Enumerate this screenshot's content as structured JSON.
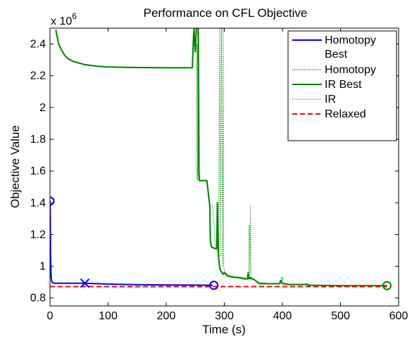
{
  "chart_data": {
    "type": "line",
    "title": "Performance on CFL Objective",
    "xlabel": "Time (s)",
    "ylabel": "Objective Value",
    "y_multiplier_label": "x 10",
    "y_multiplier_exponent": "6",
    "xlim": [
      0,
      600
    ],
    "ylim": [
      0.75,
      2.5
    ],
    "x_ticks": [
      0,
      100,
      200,
      300,
      400,
      500,
      600
    ],
    "y_ticks": [
      0.8,
      1,
      1.2,
      1.4,
      1.6,
      1.8,
      2,
      2.2,
      2.4
    ],
    "grid": false,
    "legend_position": "top-right",
    "colors": {
      "homotopy": "#0000ff",
      "ir": "#007f00",
      "relaxed": "#ff0000"
    },
    "series": [
      {
        "name": "Homotopy Best",
        "style": "solid",
        "color": "#0000ff",
        "x": [
          0,
          0.5,
          1,
          2,
          3,
          5,
          8,
          60,
          100,
          150,
          200,
          250,
          280
        ],
        "y": [
          1.41,
          1.3,
          1.05,
          0.93,
          0.905,
          0.895,
          0.893,
          0.893,
          0.888,
          0.884,
          0.882,
          0.881,
          0.88
        ]
      },
      {
        "name": "Homotopy",
        "style": "dotted",
        "color": "#0000ff",
        "x": [
          0,
          0.5,
          1,
          2,
          3,
          5,
          8,
          60,
          100,
          150,
          200,
          250,
          280
        ],
        "y": [
          1.41,
          1.3,
          1.05,
          0.93,
          0.905,
          0.895,
          0.893,
          0.893,
          0.888,
          0.884,
          0.882,
          0.881,
          0.88
        ]
      },
      {
        "name": "IR Best",
        "style": "solid",
        "color": "#007f00",
        "x": [
          10,
          15,
          20,
          25,
          30,
          40,
          60,
          80,
          100,
          150,
          200,
          245,
          246,
          247,
          248,
          249,
          250,
          252,
          255,
          256,
          257,
          258,
          270,
          275,
          276,
          278,
          285,
          287,
          288,
          290,
          292,
          294,
          296,
          298,
          300,
          305,
          310,
          315,
          320,
          330,
          335,
          340,
          341,
          342,
          343,
          345,
          347,
          350,
          360,
          380,
          395,
          397,
          400,
          402,
          410,
          440,
          442,
          444,
          450,
          500,
          550,
          580
        ],
        "y": [
          2.49,
          2.4,
          2.36,
          2.33,
          2.31,
          2.29,
          2.27,
          2.26,
          2.255,
          2.252,
          2.25,
          2.25,
          2.35,
          2.45,
          2.5,
          2.4,
          2.35,
          2.5,
          2.5,
          1.6,
          1.54,
          1.54,
          1.54,
          1.38,
          1.16,
          1.12,
          1.11,
          1.11,
          1.4,
          1.06,
          0.99,
          0.97,
          0.96,
          0.95,
          0.96,
          0.94,
          0.935,
          0.93,
          0.93,
          0.925,
          0.92,
          0.92,
          0.96,
          0.93,
          0.92,
          0.93,
          0.92,
          0.92,
          0.89,
          0.89,
          0.89,
          0.91,
          0.89,
          0.89,
          0.885,
          0.885,
          0.89,
          0.88,
          0.88,
          0.878,
          0.878,
          0.878
        ]
      },
      {
        "name": "IR",
        "style": "dotted",
        "color": "#007f00",
        "x": [
          252,
          253,
          254,
          256,
          258,
          260,
          262,
          264,
          268,
          270,
          275,
          280,
          285,
          288,
          290,
          292,
          293,
          295,
          297,
          298,
          299,
          300,
          302,
          305,
          310,
          320,
          330,
          340,
          342,
          343,
          344,
          345,
          346,
          348,
          350,
          360,
          380,
          397,
          398,
          399,
          400,
          402,
          405,
          420,
          440,
          444,
          446,
          448,
          460,
          500,
          550,
          580
        ],
        "y": [
          1.55,
          2.4,
          1.54,
          2.48,
          1.54,
          1.54,
          1.54,
          1.54,
          1.54,
          1.54,
          1.38,
          1.38,
          1.12,
          1.1,
          1.1,
          2.5,
          1.06,
          2.5,
          1.0,
          2.5,
          1.0,
          0.97,
          0.96,
          0.95,
          0.94,
          0.935,
          0.93,
          0.925,
          0.95,
          1.26,
          0.94,
          1.38,
          0.93,
          0.92,
          0.92,
          0.9,
          0.89,
          0.89,
          0.93,
          0.9,
          0.935,
          0.9,
          0.89,
          0.885,
          0.885,
          0.89,
          0.885,
          0.88,
          0.88,
          0.878,
          0.878,
          0.878
        ]
      },
      {
        "name": "Relaxed",
        "style": "dashed",
        "color": "#ff0000",
        "x": [
          0,
          580
        ],
        "y": [
          0.872,
          0.872
        ]
      }
    ],
    "markers": [
      {
        "name": "Homotopy start",
        "series": "Homotopy Best",
        "shape": "circle",
        "x": 0,
        "y": 1.41
      },
      {
        "name": "Homotopy cross",
        "series": "Homotopy Best",
        "shape": "x",
        "x": 60,
        "y": 0.893
      },
      {
        "name": "Homotopy end",
        "series": "Homotopy Best",
        "shape": "circle",
        "x": 282,
        "y": 0.88
      },
      {
        "name": "IR end",
        "series": "IR Best",
        "shape": "circle",
        "x": 580,
        "y": 0.878
      }
    ],
    "legend": [
      {
        "label_lines": [
          "Homotopy",
          "Best"
        ],
        "series": "Homotopy Best"
      },
      {
        "label_lines": [
          "Homotopy"
        ],
        "series": "Homotopy"
      },
      {
        "label_lines": [
          "IR Best"
        ],
        "series": "IR Best"
      },
      {
        "label_lines": [
          "IR"
        ],
        "series": "IR"
      },
      {
        "label_lines": [
          "Relaxed"
        ],
        "series": "Relaxed"
      }
    ]
  }
}
